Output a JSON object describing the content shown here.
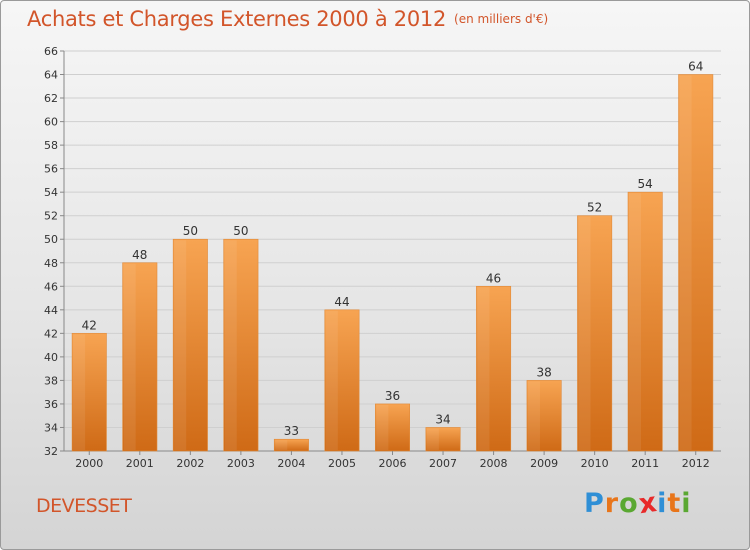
{
  "title": "Achats et Charges Externes 2000 à 2012",
  "subtitle": "(en milliers d'€)",
  "commune": "DEVESSET",
  "logo": {
    "letters": [
      "P",
      "r",
      "o",
      "x",
      "i",
      "t",
      "i"
    ],
    "colors": [
      "#2f8fd6",
      "#e8751a",
      "#5aa832",
      "#e82a2a",
      "#2f8fd6",
      "#e8751a",
      "#5aa832"
    ]
  },
  "colors": {
    "accent": "#d2552a",
    "bar_light": "#f7a452",
    "bar_dark": "#cf6a16"
  },
  "chart_data": {
    "type": "bar",
    "categories": [
      "2000",
      "2001",
      "2002",
      "2003",
      "2004",
      "2005",
      "2006",
      "2007",
      "2008",
      "2009",
      "2010",
      "2011",
      "2012"
    ],
    "values": [
      42,
      48,
      50,
      50,
      33,
      44,
      36,
      34,
      46,
      38,
      52,
      54,
      64
    ],
    "ylim": [
      32,
      66
    ],
    "yticks": [
      32,
      34,
      36,
      38,
      40,
      42,
      44,
      46,
      48,
      50,
      52,
      54,
      56,
      58,
      60,
      62,
      64,
      66
    ],
    "grid": true,
    "title": "Achats et Charges Externes 2000 à 2012",
    "xlabel": "",
    "ylabel": ""
  }
}
